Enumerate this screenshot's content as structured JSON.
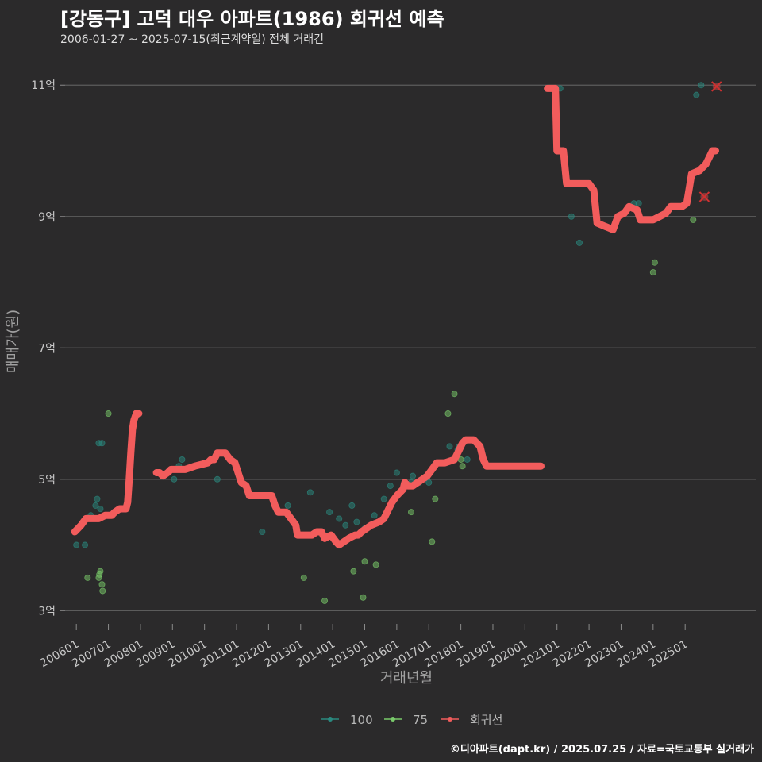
{
  "chart_data": {
    "type": "scatter",
    "title": "[강동구] 고덕 대우 아파트(1986) 회귀선 예측",
    "subtitle": "2006-01-27 ~ 2025-07-15(최근계약일) 전체 거래건",
    "xlabel": "거래년월",
    "ylabel": "매매가(원)",
    "source": "©디아파트(dapt.kr) / 2025.07.25 / 자료=국토교통부 실거래가",
    "xlim": [
      2005.5,
      2027.2
    ],
    "ylim": [
      2.75,
      11.45
    ],
    "x_ticks": [
      {
        "label": "200601",
        "value": 2006.0
      },
      {
        "label": "200701",
        "value": 2007.0
      },
      {
        "label": "200801",
        "value": 2008.0
      },
      {
        "label": "200901",
        "value": 2009.0
      },
      {
        "label": "201001",
        "value": 2010.0
      },
      {
        "label": "201101",
        "value": 2011.0
      },
      {
        "label": "201201",
        "value": 2012.0
      },
      {
        "label": "201301",
        "value": 2013.0
      },
      {
        "label": "201401",
        "value": 2014.0
      },
      {
        "label": "201501",
        "value": 2015.0
      },
      {
        "label": "201601",
        "value": 2016.0
      },
      {
        "label": "201701",
        "value": 2017.0
      },
      {
        "label": "201801",
        "value": 2018.0
      },
      {
        "label": "201901",
        "value": 2019.0
      },
      {
        "label": "202001",
        "value": 2020.0
      },
      {
        "label": "202101",
        "value": 2021.0
      },
      {
        "label": "202201",
        "value": 2022.0
      },
      {
        "label": "202301",
        "value": 2023.0
      },
      {
        "label": "202401",
        "value": 2024.0
      },
      {
        "label": "202501",
        "value": 2025.0
      }
    ],
    "y_ticks": [
      {
        "label": "3억",
        "value": 3
      },
      {
        "label": "5억",
        "value": 5
      },
      {
        "label": "7억",
        "value": 7
      },
      {
        "label": "9억",
        "value": 9
      },
      {
        "label": "11억",
        "value": 11
      }
    ],
    "legend": {
      "position": "bottom",
      "items": [
        {
          "name": "100",
          "color": "#2a8a80"
        },
        {
          "name": "75",
          "color": "#79c96a"
        },
        {
          "name": "회귀선",
          "color": "#f25c5c"
        }
      ]
    },
    "series": [
      {
        "name": "100",
        "color": "#2a8a80",
        "points": [
          [
            2006.0,
            4.0
          ],
          [
            2006.27,
            4.0
          ],
          [
            2006.45,
            4.45
          ],
          [
            2006.6,
            4.6
          ],
          [
            2006.65,
            4.7
          ],
          [
            2006.7,
            5.55
          ],
          [
            2006.8,
            5.55
          ],
          [
            2006.75,
            4.55
          ],
          [
            2009.05,
            5.0
          ],
          [
            2009.2,
            5.2
          ],
          [
            2009.3,
            5.3
          ],
          [
            2010.4,
            5.0
          ],
          [
            2011.55,
            4.75
          ],
          [
            2011.8,
            4.2
          ],
          [
            2012.6,
            4.6
          ],
          [
            2013.3,
            4.8
          ],
          [
            2013.9,
            4.5
          ],
          [
            2014.2,
            4.4
          ],
          [
            2014.4,
            4.3
          ],
          [
            2014.6,
            4.6
          ],
          [
            2014.75,
            4.35
          ],
          [
            2015.0,
            4.25
          ],
          [
            2015.3,
            4.45
          ],
          [
            2015.6,
            4.7
          ],
          [
            2015.8,
            4.9
          ],
          [
            2016.0,
            5.1
          ],
          [
            2016.45,
            4.95
          ],
          [
            2016.5,
            5.05
          ],
          [
            2016.7,
            4.95
          ],
          [
            2016.95,
            5.05
          ],
          [
            2017.0,
            4.95
          ],
          [
            2017.65,
            5.5
          ],
          [
            2017.95,
            5.5
          ],
          [
            2017.9,
            5.45
          ],
          [
            2018.2,
            5.3
          ],
          [
            2021.1,
            10.95
          ],
          [
            2021.45,
            9.0
          ],
          [
            2021.7,
            8.6
          ],
          [
            2023.4,
            9.2
          ],
          [
            2023.55,
            9.2
          ],
          [
            2024.5,
            9.1
          ],
          [
            2024.65,
            9.15
          ],
          [
            2025.35,
            10.85
          ],
          [
            2025.5,
            11.0
          ]
        ]
      },
      {
        "name": "75",
        "color": "#79c96a",
        "points": [
          [
            2006.35,
            3.5
          ],
          [
            2006.7,
            3.5
          ],
          [
            2006.72,
            3.55
          ],
          [
            2006.75,
            3.6
          ],
          [
            2006.8,
            3.4
          ],
          [
            2006.82,
            3.3
          ],
          [
            2007.0,
            6.0
          ],
          [
            2013.1,
            3.5
          ],
          [
            2013.75,
            3.15
          ],
          [
            2014.65,
            3.6
          ],
          [
            2014.95,
            3.2
          ],
          [
            2015.0,
            3.75
          ],
          [
            2015.35,
            3.7
          ],
          [
            2016.45,
            4.5
          ],
          [
            2017.1,
            4.05
          ],
          [
            2017.2,
            4.7
          ],
          [
            2017.6,
            6.0
          ],
          [
            2017.8,
            6.3
          ],
          [
            2018.05,
            5.2
          ],
          [
            2018.0,
            5.3
          ],
          [
            2024.05,
            8.3
          ],
          [
            2024.0,
            8.15
          ],
          [
            2025.25,
            8.95
          ]
        ]
      }
    ],
    "regression": [
      {
        "name": "회귀선 2006-2008",
        "color": "#f25c5c",
        "points": [
          [
            2005.95,
            4.2
          ],
          [
            2006.05,
            4.25
          ],
          [
            2006.15,
            4.3
          ],
          [
            2006.22,
            4.35
          ],
          [
            2006.3,
            4.4
          ],
          [
            2006.45,
            4.4
          ],
          [
            2006.7,
            4.4
          ],
          [
            2006.9,
            4.45
          ],
          [
            2007.1,
            4.45
          ],
          [
            2007.2,
            4.5
          ],
          [
            2007.35,
            4.55
          ],
          [
            2007.55,
            4.55
          ],
          [
            2007.6,
            4.65
          ],
          [
            2007.65,
            5.0
          ],
          [
            2007.7,
            5.4
          ],
          [
            2007.75,
            5.75
          ],
          [
            2007.8,
            5.9
          ],
          [
            2007.87,
            6.0
          ],
          [
            2007.95,
            6.0
          ]
        ]
      },
      {
        "name": "회귀선 2008-2019",
        "color": "#f25c5c",
        "points": [
          [
            2008.5,
            5.1
          ],
          [
            2008.6,
            5.1
          ],
          [
            2008.7,
            5.05
          ],
          [
            2008.85,
            5.1
          ],
          [
            2008.95,
            5.15
          ],
          [
            2009.4,
            5.15
          ],
          [
            2009.7,
            5.2
          ],
          [
            2010.1,
            5.25
          ],
          [
            2010.2,
            5.3
          ],
          [
            2010.3,
            5.3
          ],
          [
            2010.4,
            5.4
          ],
          [
            2010.65,
            5.4
          ],
          [
            2010.8,
            5.3
          ],
          [
            2010.95,
            5.25
          ],
          [
            2011.05,
            5.1
          ],
          [
            2011.15,
            4.95
          ],
          [
            2011.3,
            4.9
          ],
          [
            2011.4,
            4.75
          ],
          [
            2011.9,
            4.75
          ],
          [
            2012.1,
            4.75
          ],
          [
            2012.2,
            4.6
          ],
          [
            2012.3,
            4.5
          ],
          [
            2012.55,
            4.5
          ],
          [
            2012.7,
            4.4
          ],
          [
            2012.85,
            4.3
          ],
          [
            2012.9,
            4.15
          ],
          [
            2013.2,
            4.15
          ],
          [
            2013.35,
            4.15
          ],
          [
            2013.5,
            4.2
          ],
          [
            2013.65,
            4.2
          ],
          [
            2013.75,
            4.1
          ],
          [
            2013.95,
            4.15
          ],
          [
            2014.1,
            4.05
          ],
          [
            2014.2,
            4.0
          ],
          [
            2014.35,
            4.05
          ],
          [
            2014.5,
            4.1
          ],
          [
            2014.7,
            4.15
          ],
          [
            2014.8,
            4.15
          ],
          [
            2014.9,
            4.2
          ],
          [
            2015.05,
            4.25
          ],
          [
            2015.2,
            4.3
          ],
          [
            2015.45,
            4.35
          ],
          [
            2015.6,
            4.4
          ],
          [
            2015.75,
            4.55
          ],
          [
            2015.85,
            4.65
          ],
          [
            2016.0,
            4.75
          ],
          [
            2016.2,
            4.85
          ],
          [
            2016.25,
            4.95
          ],
          [
            2016.35,
            4.9
          ],
          [
            2016.5,
            4.9
          ],
          [
            2016.65,
            4.95
          ],
          [
            2016.8,
            5.0
          ],
          [
            2016.95,
            5.05
          ],
          [
            2017.1,
            5.15
          ],
          [
            2017.25,
            5.25
          ],
          [
            2017.5,
            5.25
          ],
          [
            2017.8,
            5.3
          ],
          [
            2017.85,
            5.35
          ],
          [
            2017.95,
            5.45
          ],
          [
            2018.05,
            5.55
          ],
          [
            2018.15,
            5.6
          ],
          [
            2018.4,
            5.6
          ],
          [
            2018.6,
            5.5
          ],
          [
            2018.7,
            5.3
          ],
          [
            2018.8,
            5.2
          ],
          [
            2019.0,
            5.2
          ],
          [
            2019.5,
            5.2
          ],
          [
            2020.0,
            5.2
          ],
          [
            2020.5,
            5.2
          ]
        ]
      },
      {
        "name": "회귀선 2020-2025",
        "color": "#f25c5c",
        "points": [
          [
            2020.7,
            10.95
          ],
          [
            2020.85,
            10.95
          ],
          [
            2020.95,
            10.95
          ],
          [
            2021.0,
            10.0
          ],
          [
            2021.2,
            10.0
          ],
          [
            2021.3,
            9.5
          ],
          [
            2021.8,
            9.5
          ],
          [
            2022.0,
            9.5
          ],
          [
            2022.15,
            9.4
          ],
          [
            2022.25,
            8.9
          ],
          [
            2022.5,
            8.85
          ],
          [
            2022.75,
            8.8
          ],
          [
            2022.9,
            9.0
          ],
          [
            2023.1,
            9.05
          ],
          [
            2023.25,
            9.15
          ],
          [
            2023.5,
            9.1
          ],
          [
            2023.6,
            8.95
          ],
          [
            2023.8,
            8.95
          ],
          [
            2024.0,
            8.95
          ],
          [
            2024.2,
            9.0
          ],
          [
            2024.4,
            9.05
          ],
          [
            2024.55,
            9.15
          ],
          [
            2024.9,
            9.15
          ],
          [
            2025.05,
            9.2
          ],
          [
            2025.2,
            9.65
          ],
          [
            2025.45,
            9.7
          ],
          [
            2025.65,
            9.8
          ],
          [
            2025.75,
            9.9
          ],
          [
            2025.85,
            10.0
          ],
          [
            2025.95,
            10.0
          ]
        ]
      }
    ],
    "predicted_markers": [
      {
        "x": 2025.6,
        "y": 9.3
      },
      {
        "x": 2025.98,
        "y": 10.98
      }
    ]
  }
}
